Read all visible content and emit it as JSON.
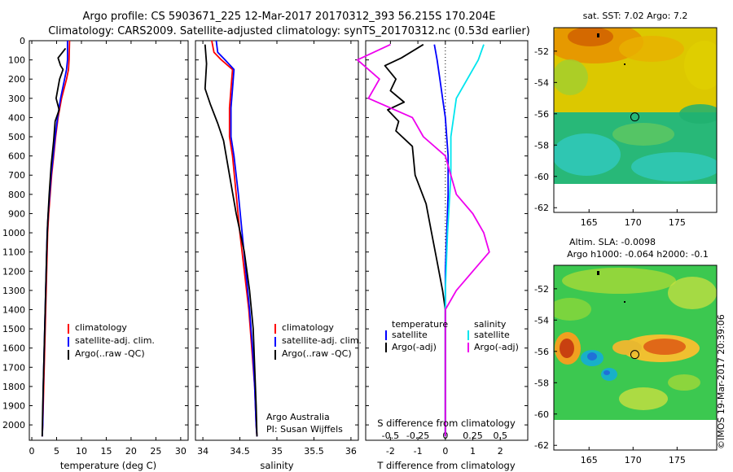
{
  "title_line1": "Argo profile: CS 5903671_225 12-Mar-2017 20170312_393 56.215S 170.204E",
  "title_line2": "Climatology: CARS2009. Satellite-adjusted climatology: synTS_20170312.nc (0.53d earlier)",
  "credit": "©IMOS 19-Mar-2017 20:39:06",
  "colors": {
    "climatology": "#ff0000",
    "satellite": "#0000ff",
    "argo": "#000000",
    "satellite_salinity": "#00e5ee",
    "argo_salinity": "#ee00ee"
  },
  "chart_data": [
    {
      "type": "line",
      "name": "temperature-profile",
      "xlabel": "temperature (deg C)",
      "xlim": [
        -0.5,
        31.5
      ],
      "xticks": [
        "0",
        "5",
        "10",
        "15",
        "20",
        "25",
        "30"
      ],
      "ylim": [
        2080,
        0
      ],
      "yticks": [
        "0",
        "100",
        "200",
        "300",
        "400",
        "500",
        "600",
        "700",
        "800",
        "900",
        "1000",
        "1100",
        "1200",
        "1300",
        "1400",
        "1500",
        "1600",
        "1700",
        "1800",
        "1900",
        "2000"
      ],
      "legend": {
        "location": "lower-right",
        "entries": [
          "climatology",
          "satellite-adj. clim.",
          "Argo(..raw -QC)"
        ]
      },
      "series": [
        {
          "name": "climatology",
          "color": "#ff0000",
          "points": [
            [
              7.6,
              0
            ],
            [
              7.5,
              100
            ],
            [
              7.4,
              150
            ],
            [
              7.0,
              200
            ],
            [
              6.0,
              300
            ],
            [
              5.3,
              400
            ],
            [
              4.8,
              500
            ],
            [
              4.4,
              600
            ],
            [
              4.0,
              700
            ],
            [
              3.7,
              800
            ],
            [
              3.4,
              900
            ],
            [
              3.2,
              1000
            ],
            [
              3.0,
              1200
            ],
            [
              2.8,
              1400
            ],
            [
              2.6,
              1600
            ],
            [
              2.4,
              1800
            ],
            [
              2.2,
              2000
            ],
            [
              2.1,
              2060
            ]
          ]
        },
        {
          "name": "satellite-adj. clim.",
          "color": "#0000ff",
          "points": [
            [
              7.2,
              0
            ],
            [
              7.2,
              100
            ],
            [
              7.0,
              150
            ],
            [
              6.6,
              200
            ],
            [
              5.8,
              300
            ],
            [
              5.2,
              400
            ],
            [
              4.7,
              500
            ],
            [
              4.3,
              600
            ],
            [
              3.9,
              700
            ],
            [
              3.6,
              800
            ],
            [
              3.3,
              900
            ],
            [
              3.1,
              1000
            ],
            [
              2.9,
              1200
            ],
            [
              2.7,
              1400
            ],
            [
              2.5,
              1600
            ],
            [
              2.3,
              1800
            ],
            [
              2.2,
              2000
            ],
            [
              2.1,
              2060
            ]
          ]
        },
        {
          "name": "Argo(..raw -QC)",
          "color": "#000000",
          "points": [
            [
              6.8,
              40
            ],
            [
              6.2,
              60
            ],
            [
              5.3,
              90
            ],
            [
              5.8,
              130
            ],
            [
              6.3,
              150
            ],
            [
              5.6,
              200
            ],
            [
              4.9,
              300
            ],
            [
              5.5,
              360
            ],
            [
              4.7,
              420
            ],
            [
              4.4,
              520
            ],
            [
              3.9,
              650
            ],
            [
              3.5,
              800
            ],
            [
              3.2,
              950
            ],
            [
              3.0,
              1100
            ],
            [
              2.8,
              1300
            ],
            [
              2.6,
              1500
            ],
            [
              2.4,
              1700
            ],
            [
              2.2,
              1900
            ],
            [
              2.1,
              2060
            ]
          ]
        }
      ]
    },
    {
      "type": "line",
      "name": "salinity-profile",
      "xlabel": "salinity",
      "xlim": [
        33.9,
        36.1
      ],
      "xticks": [
        "34",
        "34.5",
        "35",
        "35.5",
        "36"
      ],
      "ylim": [
        2080,
        0
      ],
      "legend": {
        "location": "lower-right",
        "entries": [
          "climatology",
          "satellite-adj. clim.",
          "Argo(..raw -QC)"
        ]
      },
      "annotations": [
        "Argo Australia",
        "PI: Susan Wijffels"
      ],
      "series": [
        {
          "name": "climatology",
          "color": "#ff0000",
          "points": [
            [
              34.12,
              0
            ],
            [
              34.15,
              60
            ],
            [
              34.25,
              100
            ],
            [
              34.4,
              150
            ],
            [
              34.38,
              250
            ],
            [
              34.36,
              350
            ],
            [
              34.36,
              500
            ],
            [
              34.4,
              600
            ],
            [
              34.45,
              800
            ],
            [
              34.5,
              1000
            ],
            [
              34.56,
              1200
            ],
            [
              34.62,
              1400
            ],
            [
              34.66,
              1600
            ],
            [
              34.7,
              1800
            ],
            [
              34.72,
              2000
            ],
            [
              34.73,
              2060
            ]
          ]
        },
        {
          "name": "satellite-adj. clim.",
          "color": "#0000ff",
          "points": [
            [
              34.18,
              0
            ],
            [
              34.2,
              60
            ],
            [
              34.3,
              100
            ],
            [
              34.42,
              150
            ],
            [
              34.4,
              250
            ],
            [
              34.38,
              350
            ],
            [
              34.38,
              500
            ],
            [
              34.42,
              600
            ],
            [
              34.48,
              800
            ],
            [
              34.53,
              1000
            ],
            [
              34.58,
              1200
            ],
            [
              34.63,
              1400
            ],
            [
              34.67,
              1600
            ],
            [
              34.7,
              1800
            ],
            [
              34.72,
              2000
            ],
            [
              34.73,
              2060
            ]
          ]
        },
        {
          "name": "Argo(..raw -QC)",
          "color": "#000000",
          "points": [
            [
              34.03,
              20
            ],
            [
              34.05,
              120
            ],
            [
              34.03,
              250
            ],
            [
              34.1,
              330
            ],
            [
              34.2,
              430
            ],
            [
              34.28,
              520
            ],
            [
              34.36,
              700
            ],
            [
              34.45,
              900
            ],
            [
              34.56,
              1100
            ],
            [
              34.63,
              1300
            ],
            [
              34.68,
              1500
            ],
            [
              34.7,
              1700
            ],
            [
              34.72,
              1900
            ],
            [
              34.73,
              2060
            ]
          ]
        }
      ]
    },
    {
      "type": "line",
      "name": "difference-profile",
      "xlabel_top": "S difference from climatology",
      "xticks_top": [
        "-0.5",
        "-0.25",
        "0",
        "0.25",
        "0.5"
      ],
      "xlabel": "T difference from climatology",
      "xlim": [
        -2.9,
        3.0
      ],
      "xticks": [
        "-2",
        "-1",
        "0",
        "1",
        "2"
      ],
      "ylim": [
        2080,
        0
      ],
      "legend": {
        "location": "lower",
        "entries": [
          "temperature",
          "satellite",
          "Argo(-adj)",
          "salinity",
          "satellite",
          "Argo(-adj)"
        ]
      },
      "series": [
        {
          "name": "temperature satellite",
          "color": "#0000ff",
          "points": [
            [
              -0.4,
              20
            ],
            [
              -0.3,
              100
            ],
            [
              -0.2,
              200
            ],
            [
              -0.1,
              300
            ],
            [
              0,
              400
            ],
            [
              0.05,
              500
            ],
            [
              0.1,
              600
            ],
            [
              0.1,
              800
            ],
            [
              0.05,
              1000
            ],
            [
              0,
              1200
            ],
            [
              0,
              1500
            ],
            [
              0,
              2060
            ]
          ]
        },
        {
          "name": "temperature Argo(-adj)",
          "color": "#000000",
          "points": [
            [
              -0.8,
              20
            ],
            [
              -1.6,
              90
            ],
            [
              -2.2,
              130
            ],
            [
              -1.8,
              200
            ],
            [
              -2.0,
              260
            ],
            [
              -1.5,
              320
            ],
            [
              -2.1,
              360
            ],
            [
              -1.7,
              420
            ],
            [
              -1.8,
              470
            ],
            [
              -1.2,
              550
            ],
            [
              -1.1,
              700
            ],
            [
              -0.7,
              850
            ],
            [
              -0.5,
              1000
            ],
            [
              -0.3,
              1150
            ],
            [
              -0.1,
              1300
            ],
            [
              0,
              1400
            ],
            [
              0,
              2060
            ]
          ]
        },
        {
          "name": "salinity satellite",
          "color": "#00e5ee",
          "points": [
            [
              0.35,
              20
            ],
            [
              0.3,
              100
            ],
            [
              0.2,
              200
            ],
            [
              0.1,
              300
            ],
            [
              0.05,
              500
            ],
            [
              0.05,
              700
            ],
            [
              0.02,
              1000
            ],
            [
              0,
              1300
            ],
            [
              0,
              1600
            ],
            [
              0,
              2060
            ]
          ]
        },
        {
          "name": "salinity Argo(-adj)",
          "color": "#ee00ee",
          "points": [
            [
              -0.5,
              20
            ],
            [
              -0.8,
              100
            ],
            [
              -0.6,
              200
            ],
            [
              -0.7,
              300
            ],
            [
              -0.3,
              400
            ],
            [
              -0.2,
              500
            ],
            [
              0,
              600
            ],
            [
              0.1,
              800
            ],
            [
              0.25,
              900
            ],
            [
              0.35,
              1000
            ],
            [
              0.4,
              1100
            ],
            [
              0.25,
              1200
            ],
            [
              0.1,
              1300
            ],
            [
              0,
              1400
            ],
            [
              0,
              2060
            ]
          ]
        }
      ]
    },
    {
      "type": "heatmap",
      "name": "sst-map",
      "title": "sat. SST: 7.02 Argo: 7.2",
      "xlim": [
        161,
        179.5
      ],
      "xticks": [
        "165",
        "170",
        "175"
      ],
      "ylim": [
        -62.3,
        -50.5
      ],
      "yticks": [
        "-52",
        "-54",
        "-56",
        "-58",
        "-60",
        "-62"
      ],
      "marker": {
        "lon": 170.2,
        "lat": -56.2
      }
    },
    {
      "type": "heatmap",
      "name": "sla-map",
      "title": "Altim. SLA: -0.0098",
      "subtitle": "Argo h1000: -0.064 h2000: -0.1",
      "xlim": [
        161,
        179.5
      ],
      "xticks": [
        "165",
        "170",
        "175"
      ],
      "ylim": [
        -62.3,
        -50.5
      ],
      "yticks": [
        "-52",
        "-54",
        "-56",
        "-58",
        "-60",
        "-62"
      ],
      "marker": {
        "lon": 170.2,
        "lat": -56.2
      }
    }
  ]
}
